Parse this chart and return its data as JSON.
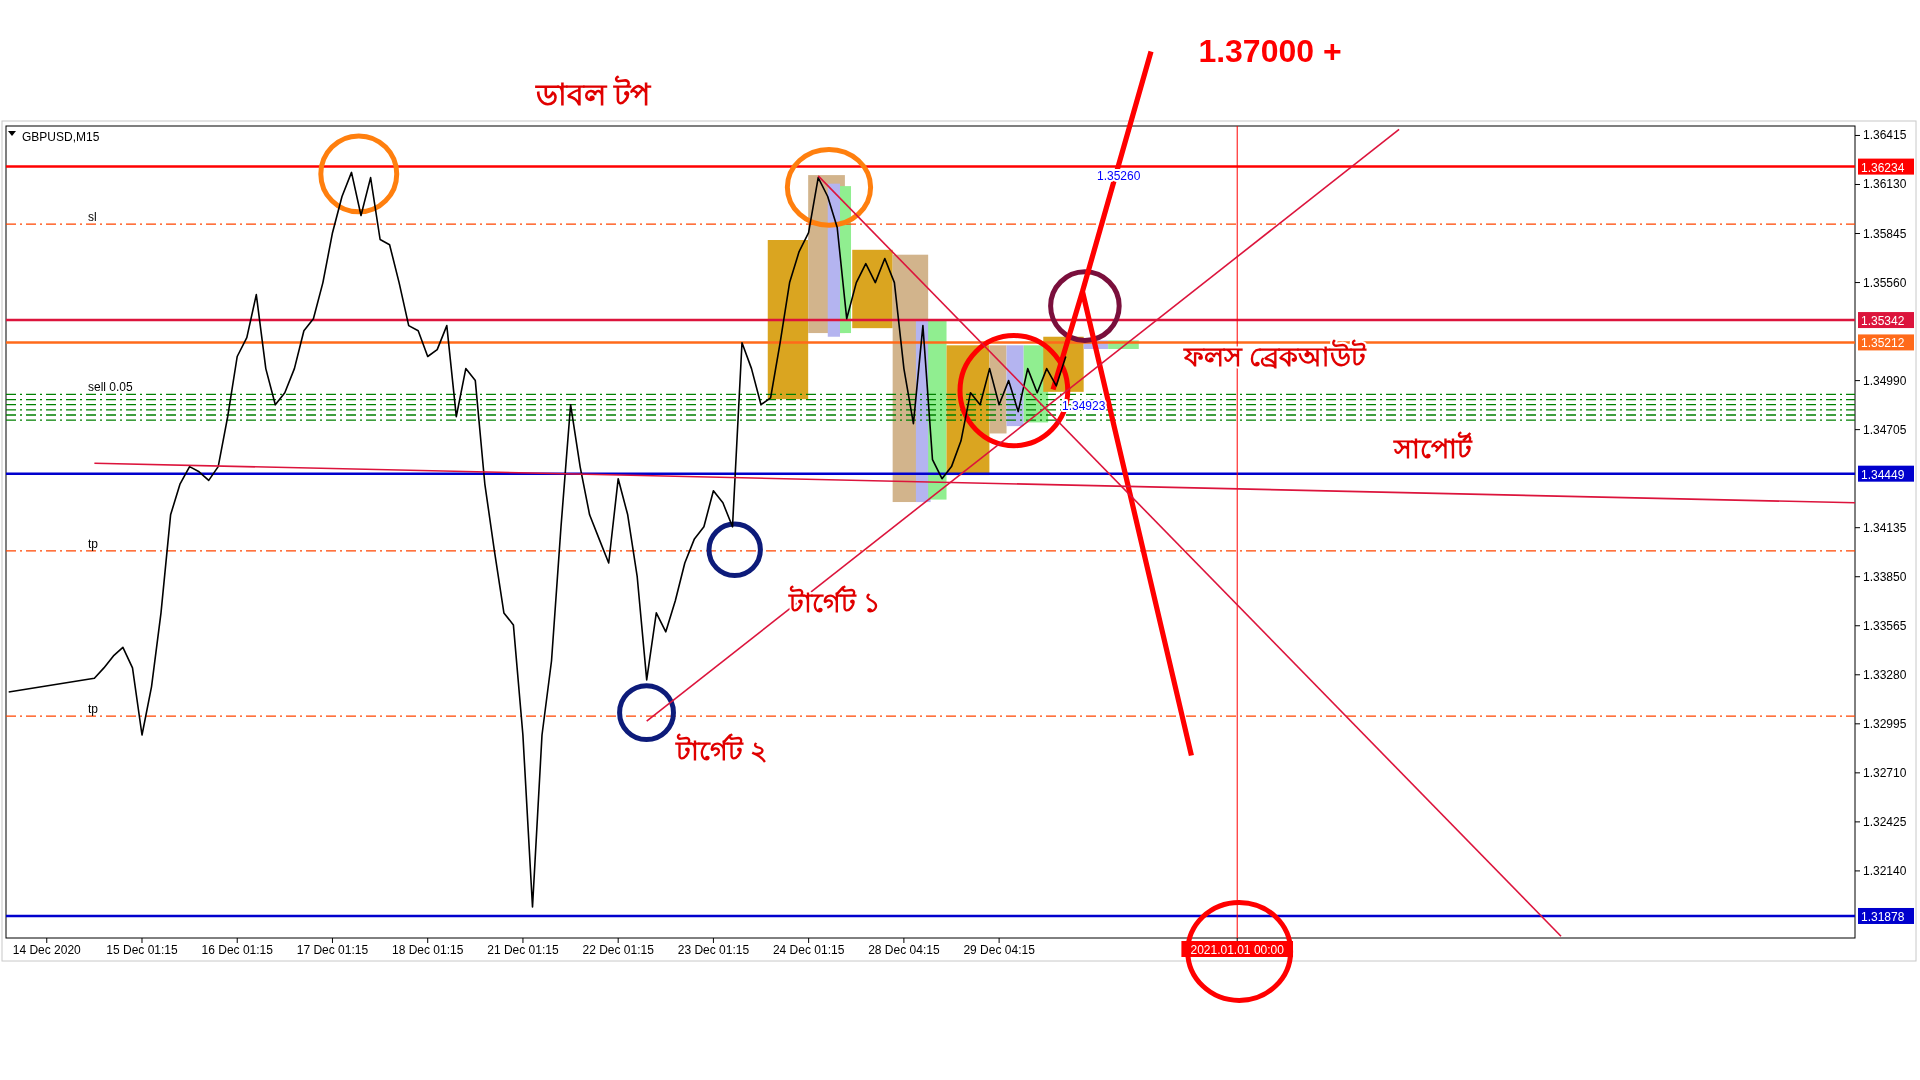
{
  "chart_data": {
    "type": "line",
    "categories": [
      null,
      null,
      null,
      null,
      "14 Dec 2020",
      null,
      null,
      null,
      null,
      null,
      null,
      null,
      null,
      null,
      "15 Dec 01:15",
      null,
      null,
      null,
      null,
      null,
      null,
      null,
      null,
      null,
      "16 Dec 01:15",
      null,
      null,
      null,
      null,
      null,
      null,
      null,
      null,
      null,
      "17 Dec 01:15",
      null,
      null,
      null,
      null,
      null,
      null,
      null,
      null,
      null,
      "18 Dec 01:15",
      null,
      null,
      null,
      null,
      null,
      null,
      null,
      null,
      null,
      "21 Dec 01:15",
      null,
      null,
      null,
      null,
      null,
      null,
      null,
      null,
      null,
      "22 Dec 01:15",
      null,
      null,
      null,
      null,
      null,
      null,
      null,
      null,
      null,
      "23 Dec 01:15",
      null,
      null,
      null,
      null,
      null,
      null,
      null,
      null,
      null,
      "24 Dec 01:15",
      null,
      null,
      null,
      null,
      null,
      null,
      null,
      null,
      null,
      "28 Dec 04:15",
      null,
      null,
      null,
      null,
      null,
      null,
      null,
      null,
      null,
      "29 Dec 04:15",
      null,
      null,
      null,
      null,
      null,
      null,
      null,
      null,
      null,
      null,
      null,
      null,
      null,
      null,
      null,
      null,
      null,
      null,
      null,
      null,
      null,
      null,
      null,
      null,
      "2021.01.01 00:00",
      null,
      null,
      null,
      null,
      null,
      null,
      null,
      null,
      null,
      null,
      null,
      null,
      null,
      null,
      null,
      null,
      null,
      null,
      null,
      null,
      null,
      null,
      null,
      null,
      null,
      null,
      null,
      null,
      null,
      null,
      null,
      null,
      null,
      null,
      null,
      null,
      null,
      null,
      null,
      null,
      null,
      null,
      null,
      null,
      null,
      null,
      null,
      null,
      null,
      null,
      null,
      null,
      null,
      null,
      null,
      null,
      null,
      null,
      null,
      null,
      null,
      null,
      null,
      null,
      null
    ],
    "series": [
      {
        "color": "#000000",
        "values": [
          1.3318,
          null,
          null,
          null,
          null,
          null,
          null,
          null,
          null,
          1.3326,
          1.3332,
          1.3339,
          1.3344,
          1.3332,
          1.3293,
          1.3321,
          1.3364,
          1.3421,
          1.3439,
          1.3449,
          1.3446,
          1.3441,
          1.3449,
          1.3478,
          1.3513,
          1.3524,
          1.3549,
          1.3506,
          1.3485,
          1.3492,
          1.3506,
          1.3528,
          1.3535,
          1.3556,
          1.3585,
          1.3606,
          1.362,
          1.3595,
          1.3617,
          1.3581,
          1.3578,
          1.3556,
          1.3531,
          1.3528,
          1.3513,
          1.3517,
          1.3531,
          1.3478,
          1.3506,
          1.3499,
          1.3439,
          1.34,
          1.3364,
          1.3357,
          1.3293,
          1.3193,
          1.3293,
          1.3336,
          1.3414,
          1.3485,
          1.3449,
          1.3421,
          1.3407,
          1.3393,
          1.3442,
          1.3421,
          1.3385,
          1.3325,
          1.3364,
          1.3353,
          1.3371,
          1.3393,
          1.3407,
          1.3414,
          1.3435,
          1.3428,
          1.3414,
          1.3521,
          1.3506,
          1.3485,
          1.3489,
          1.3521,
          1.3556,
          1.3574,
          1.3585,
          1.3617,
          1.3606,
          1.3588,
          1.3535,
          1.3556,
          1.3567,
          1.3556,
          1.357,
          1.3556,
          1.3506,
          1.3474,
          1.3531,
          1.3453,
          1.3442,
          1.3449,
          1.3464,
          1.3492,
          1.3485,
          1.3506,
          1.3485,
          1.3499,
          1.3481,
          1.3506,
          1.3492,
          1.3506,
          1.3496,
          1.3513,
          null,
          null,
          null,
          null,
          null,
          null,
          null,
          null,
          null,
          null,
          null,
          null,
          null,
          null,
          null,
          null,
          null,
          null,
          null,
          null,
          null,
          null,
          null,
          null,
          null,
          null,
          null,
          null,
          null,
          null,
          null,
          null,
          null,
          null,
          null,
          null,
          null,
          null,
          null,
          null,
          null,
          null,
          null,
          null,
          null,
          null,
          null,
          null,
          null,
          null,
          null,
          null,
          null,
          null,
          null,
          null,
          null,
          null,
          null,
          null,
          null,
          null,
          null,
          null,
          null,
          null,
          null,
          null,
          null,
          null,
          null,
          null,
          null,
          null,
          null,
          null,
          null,
          null,
          null,
          null,
          null,
          null,
          null
        ]
      },
      {
        "type": "line",
        "color": "#dc143c",
        "values": [
          null,
          null,
          null,
          null,
          null,
          null,
          null,
          null,
          null,
          null,
          null,
          null,
          null,
          null,
          null,
          null,
          null,
          null,
          null,
          null,
          null,
          null,
          null,
          null,
          null,
          null,
          null,
          null,
          null,
          null,
          null,
          null,
          null,
          null,
          null,
          null,
          null,
          null,
          null,
          null,
          null,
          null,
          null,
          null,
          null,
          null,
          null,
          null,
          null,
          null,
          null,
          null,
          null,
          null,
          null,
          null,
          null,
          null,
          null,
          null,
          null,
          null,
          null,
          null,
          null,
          null,
          null,
          1.3301,
          null,
          null,
          null,
          null,
          null,
          null,
          null,
          null,
          null,
          null,
          null,
          null,
          null,
          null,
          null,
          null,
          null,
          null,
          null,
          null,
          null,
          null,
          null,
          null,
          null,
          null,
          null,
          null,
          null,
          null,
          null,
          null,
          null,
          null,
          null,
          null,
          null,
          null,
          null,
          null,
          null,
          null,
          null,
          null,
          null,
          null,
          null,
          null,
          null,
          null,
          null,
          null,
          null,
          null,
          null,
          null,
          null,
          null,
          null,
          null,
          null,
          null,
          null,
          null,
          null,
          null,
          null,
          null,
          null,
          null,
          null,
          null,
          null,
          null,
          null,
          null,
          null,
          null,
          1.3645,
          null,
          null,
          null,
          null,
          null,
          null,
          null,
          null,
          null,
          null,
          null,
          null,
          null,
          null,
          null,
          null,
          null,
          null,
          null,
          null,
          null,
          null,
          null,
          null,
          null,
          null,
          null,
          null,
          null,
          null,
          null,
          null,
          null,
          null,
          null,
          null,
          null,
          null,
          null,
          null,
          null,
          null,
          null,
          null,
          null,
          null,
          null,
          null
        ]
      },
      {
        "type": "line",
        "color": "#dc143c",
        "values": [
          null,
          null,
          null,
          null,
          null,
          null,
          null,
          null,
          null,
          null,
          null,
          null,
          null,
          null,
          null,
          null,
          null,
          null,
          null,
          null,
          null,
          null,
          null,
          null,
          null,
          null,
          null,
          null,
          null,
          null,
          null,
          null,
          null,
          null,
          null,
          null,
          null,
          null,
          null,
          null,
          null,
          null,
          null,
          null,
          null,
          null,
          null,
          null,
          null,
          null,
          null,
          null,
          null,
          null,
          null,
          null,
          null,
          null,
          null,
          null,
          null,
          null,
          null,
          null,
          null,
          null,
          null,
          null,
          null,
          null,
          null,
          null,
          null,
          null,
          null,
          null,
          null,
          null,
          null,
          null,
          null,
          null,
          null,
          null,
          null,
          1.3618,
          null,
          null,
          null,
          null,
          null,
          null,
          null,
          null,
          null,
          null,
          null,
          null,
          null,
          null,
          null,
          null,
          null,
          null,
          null,
          null,
          null,
          null,
          null,
          null,
          null,
          null,
          null,
          null,
          null,
          null,
          null,
          null,
          null,
          null,
          null,
          null,
          null,
          null,
          null,
          null,
          null,
          null,
          null,
          null,
          null,
          null,
          null,
          null,
          null,
          null,
          null,
          null,
          null,
          null,
          null,
          null,
          null,
          null,
          null,
          null,
          null,
          null,
          null,
          null,
          null,
          null,
          null,
          null,
          null,
          null,
          null,
          null,
          null,
          null,
          null,
          null,
          null,
          1.3176,
          null,
          null,
          null,
          null,
          null,
          null,
          null,
          null,
          null,
          null,
          null,
          null,
          null,
          null,
          null,
          null,
          null,
          null,
          null,
          null,
          null,
          null,
          null,
          null,
          null,
          null,
          null,
          null,
          null,
          null,
          null
        ]
      },
      {
        "type": "line",
        "color": "#dc143c",
        "values": [
          null,
          null,
          null,
          null,
          null,
          null,
          null,
          null,
          null,
          1.3451,
          null,
          null,
          null,
          null,
          null,
          null,
          null,
          null,
          null,
          null,
          null,
          null,
          null,
          null,
          null,
          null,
          null,
          null,
          null,
          null,
          null,
          null,
          null,
          null,
          null,
          null,
          null,
          null,
          null,
          null,
          null,
          null,
          null,
          null,
          null,
          null,
          null,
          null,
          null,
          null,
          null,
          null,
          null,
          null,
          null,
          null,
          null,
          null,
          null,
          null,
          null,
          null,
          null,
          null,
          null,
          null,
          null,
          null,
          null,
          null,
          null,
          null,
          null,
          null,
          null,
          null,
          null,
          null,
          null,
          null,
          null,
          null,
          null,
          null,
          null,
          null,
          null,
          null,
          null,
          null,
          null,
          null,
          null,
          null,
          null,
          null,
          null,
          null,
          null,
          null,
          null,
          null,
          null,
          null,
          null,
          null,
          null,
          null,
          null,
          null,
          null,
          null,
          null,
          null,
          null,
          null,
          null,
          null,
          null,
          null,
          null,
          null,
          null,
          null,
          null,
          null,
          null,
          null,
          null,
          null,
          null,
          null,
          null,
          null,
          null,
          null,
          null,
          null,
          null,
          null,
          null,
          null,
          null,
          null,
          null,
          null,
          null,
          null,
          null,
          null,
          null,
          null,
          null,
          null,
          null,
          null,
          null,
          null,
          null,
          null,
          null,
          null,
          null,
          null,
          null,
          null,
          null,
          null,
          null,
          null,
          null,
          null,
          null,
          null,
          null,
          null,
          null,
          null,
          null,
          null,
          null,
          null,
          null,
          null,
          null,
          null,
          null,
          null,
          null,
          null,
          null,
          null,
          null,
          null,
          1.3428
        ]
      }
    ],
    "ylim": [
      1.3175,
      1.3647
    ],
    "yticks": [
      1.36415,
      {
        "value": 1.3613,
        "label": "1.36130"
      },
      1.35845,
      {
        "value": 1.3556,
        "label": "1.35560"
      },
      {
        "value": 1.3499,
        "label": "1.34990"
      },
      1.34705,
      1.34135,
      {
        "value": 1.3385,
        "label": "1.33850"
      },
      1.33565,
      {
        "value": 1.3328,
        "label": "1.33280"
      },
      1.32995,
      {
        "value": 1.3271,
        "label": "1.32710"
      },
      1.32425,
      {
        "value": 1.3214,
        "label": "1.32140"
      }
    ],
    "grid": false,
    "ref_lines": [
      {
        "axis": "y",
        "value": 1.36234,
        "label": "1.36234",
        "color": "#ff0000",
        "line_style": "solid"
      },
      {
        "axis": "y",
        "value": 1.35342,
        "label": "1.35342",
        "color": "#dc143c",
        "line_style": "solid"
      },
      {
        "axis": "y",
        "value": 1.35212,
        "label": "1.35212",
        "color": "#ff6a1a",
        "line_style": "solid"
      },
      {
        "axis": "y",
        "value": 1.34449,
        "label": "1.34449",
        "color": "#0000cd",
        "line_style": "solid"
      },
      {
        "axis": "y",
        "value": 1.31878,
        "label": "1.31878",
        "color": "#0000cd",
        "line_style": "solid"
      },
      {
        "axis": "y",
        "value": 1.359,
        "label": "sl",
        "color": "#ff4500",
        "line_style": "dashed"
      },
      {
        "axis": "y",
        "value": 1.34,
        "label": "tp",
        "color": "#ff4500",
        "line_style": "dashed"
      },
      {
        "axis": "y",
        "value": 1.3304,
        "label": "tp",
        "color": "#ff4500",
        "line_style": "dashed"
      },
      {
        "axis": "y",
        "value": 1.3491,
        "label": "sell 0.05",
        "color": "#008000",
        "line_style": "dashed"
      },
      {
        "axis": "y",
        "value": 1.3488,
        "label": null,
        "color": "#008000",
        "line_style": "dashed"
      },
      {
        "axis": "y",
        "value": 1.3485,
        "label": null,
        "color": "#008000",
        "line_style": "dashed"
      },
      {
        "axis": "y",
        "value": 1.3482,
        "label": null,
        "color": "#008000",
        "line_style": "dashed"
      },
      {
        "axis": "y",
        "value": 1.3479,
        "label": null,
        "color": "#008000",
        "line_style": "dashed"
      },
      {
        "axis": "y",
        "value": 1.3476,
        "label": null,
        "color": "#008000",
        "line_style": "dashed"
      },
      {
        "axis": "x",
        "value": "2021.01.01 00:00",
        "label": null,
        "color": "#ff0000",
        "line_style": "solid"
      }
    ],
    "annotations": [
      "ডাবল টপ",
      "1.37000 +",
      "ফলস ব্রেকআউট",
      "সাপোর্ট",
      "টার্গেট ১",
      "টার্গেট ২",
      "GBPUSD,M15",
      "1.34923",
      "1.35260"
    ]
  }
}
